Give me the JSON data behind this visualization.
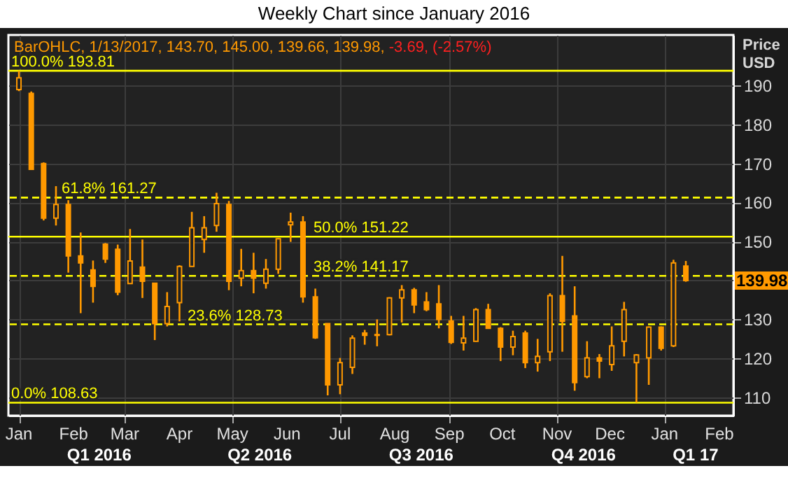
{
  "chart_data": {
    "type": "candlestick",
    "title": "Weekly Chart since January 2016",
    "ylabel": "Price USD",
    "x": [
      "2016-01-01",
      "2016-01-08",
      "2016-01-15",
      "2016-01-22",
      "2016-01-29",
      "2016-02-05",
      "2016-02-12",
      "2016-02-19",
      "2016-02-26",
      "2016-03-04",
      "2016-03-11",
      "2016-03-18",
      "2016-03-25",
      "2016-04-01",
      "2016-04-08",
      "2016-04-15",
      "2016-04-22",
      "2016-04-29",
      "2016-05-06",
      "2016-05-13",
      "2016-05-20",
      "2016-05-27",
      "2016-06-03",
      "2016-06-10",
      "2016-06-17",
      "2016-06-24",
      "2016-07-01",
      "2016-07-08",
      "2016-07-15",
      "2016-07-22",
      "2016-07-29",
      "2016-08-05",
      "2016-08-12",
      "2016-08-19",
      "2016-08-26",
      "2016-09-02",
      "2016-09-09",
      "2016-09-16",
      "2016-09-23",
      "2016-09-30",
      "2016-10-07",
      "2016-10-14",
      "2016-10-21",
      "2016-10-28",
      "2016-11-04",
      "2016-11-11",
      "2016-11-18",
      "2016-11-25",
      "2016-12-02",
      "2016-12-09",
      "2016-12-16",
      "2016-12-23",
      "2016-12-30",
      "2017-01-06",
      "2017-01-13"
    ],
    "color": "#ff9900",
    "ohlc": [
      [
        189,
        193.81,
        188.6,
        192
      ],
      [
        188,
        188.5,
        168.5,
        168.5
      ],
      [
        170,
        170.3,
        155.4,
        156
      ],
      [
        156,
        164.2,
        154.1,
        159.5
      ],
      [
        159.5,
        160.6,
        142,
        146.3
      ],
      [
        146.3,
        152.3,
        131.6,
        144.5
      ],
      [
        142.7,
        145.1,
        134.3,
        138.5
      ],
      [
        149.3,
        149.6,
        144.5,
        145.5
      ],
      [
        148,
        149.2,
        136.2,
        137
      ],
      [
        139.2,
        153.2,
        139.2,
        145
      ],
      [
        143.4,
        150.5,
        135.5,
        139.8
      ],
      [
        139.3,
        139.3,
        124.7,
        128.9
      ],
      [
        128.9,
        137,
        128.2,
        133.3
      ],
      [
        134.3,
        143.9,
        129.5,
        143.6
      ],
      [
        143.6,
        157.6,
        143.6,
        153.5
      ],
      [
        150.5,
        156.5,
        147.1,
        153.5
      ],
      [
        154.1,
        162.5,
        152.5,
        159.7
      ],
      [
        159.5,
        160.4,
        137.5,
        139.8
      ],
      [
        140.6,
        148.1,
        138.5,
        142.5
      ],
      [
        142.5,
        147.1,
        136.7,
        140.6
      ],
      [
        139.3,
        145.5,
        137.9,
        142.9
      ],
      [
        142.9,
        150.8,
        141.7,
        150.7
      ],
      [
        154.3,
        157.4,
        149.9,
        155
      ],
      [
        155,
        156.5,
        134.3,
        135.8
      ],
      [
        135.8,
        137.9,
        125,
        125.3
      ],
      [
        128.9,
        128.9,
        110.5,
        113.2
      ],
      [
        113.2,
        120.1,
        110.8,
        118.9
      ],
      [
        117.7,
        125.9,
        116,
        125.2
      ],
      [
        126.5,
        127.3,
        123.5,
        125.9
      ],
      [
        125.9,
        130,
        123.1,
        126.1
      ],
      [
        126.1,
        135.7,
        125.9,
        135.5
      ],
      [
        135.5,
        138.8,
        129.2,
        137.6
      ],
      [
        137.6,
        138.1,
        131.6,
        133.7
      ],
      [
        134.5,
        137,
        132.1,
        132.5
      ],
      [
        134,
        138.8,
        127.7,
        130
      ],
      [
        129.6,
        130.9,
        123.7,
        124.1
      ],
      [
        124,
        130.9,
        122,
        125.2
      ],
      [
        124.4,
        132.9,
        124.3,
        132.5
      ],
      [
        132.5,
        134,
        127.7,
        127.7
      ],
      [
        127.7,
        128,
        119.3,
        122.9
      ],
      [
        122.9,
        127.1,
        120.8,
        125.6
      ],
      [
        126.5,
        127.1,
        117.5,
        118.9
      ],
      [
        118.9,
        125,
        116.6,
        120.5
      ],
      [
        121.7,
        136.7,
        119.3,
        136.1
      ],
      [
        136.1,
        146.3,
        121.7,
        129.5
      ],
      [
        130.9,
        138.5,
        111.7,
        113.8
      ],
      [
        115.3,
        124.4,
        114.9,
        120.1
      ],
      [
        120.1,
        121.1,
        114.9,
        119.3
      ],
      [
        118.4,
        128.2,
        116.8,
        123.2
      ],
      [
        124.4,
        134.5,
        120.5,
        132.5
      ],
      [
        118.9,
        121.1,
        108.63,
        120.9
      ],
      [
        120.1,
        128.2,
        113.2,
        128
      ],
      [
        128,
        128.2,
        122,
        122.6
      ],
      [
        123.2,
        145.3,
        122.9,
        144.5
      ],
      [
        143.7,
        145,
        139.66,
        139.98
      ]
    ],
    "xlim": [
      "2015-12-30",
      "2017-02-05"
    ],
    "xticks": [
      {
        "value": "2016-01-01",
        "label": "Jan"
      },
      {
        "value": "2016-02-01",
        "label": "Feb"
      },
      {
        "value": "2016-03-01",
        "label": "Mar"
      },
      {
        "value": "2016-04-01",
        "label": "Apr"
      },
      {
        "value": "2016-05-01",
        "label": "May"
      },
      {
        "value": "2016-06-01",
        "label": "Jun"
      },
      {
        "value": "2016-07-01",
        "label": "Jul"
      },
      {
        "value": "2016-08-01",
        "label": "Aug"
      },
      {
        "value": "2016-09-01",
        "label": "Sep"
      },
      {
        "value": "2016-10-01",
        "label": "Oct"
      },
      {
        "value": "2016-11-01",
        "label": "Nov"
      },
      {
        "value": "2016-12-01",
        "label": "Dec"
      },
      {
        "value": "2017-01-01",
        "label": "Jan"
      },
      {
        "value": "2017-02-01",
        "label": "Feb"
      }
    ],
    "ylim": [
      105.3,
      203
    ],
    "yticks": [
      110,
      120,
      130,
      {
        "value": 140,
        "label": null
      },
      150,
      160,
      170,
      180,
      190
    ],
    "grid": true,
    "ref_lines": [
      {
        "axis": "y",
        "value": 193.81,
        "label": "100.0% 193.81",
        "color": "#ffff00",
        "line_style": "solid"
      },
      {
        "axis": "y",
        "value": 161.27,
        "label": "61.8% 161.27",
        "color": "#ffff00",
        "line_style": "dashed"
      },
      {
        "axis": "y",
        "value": 151.22,
        "label": "50.0% 151.22",
        "color": "#ffff00",
        "line_style": "solid"
      },
      {
        "axis": "y",
        "value": 141.17,
        "label": "38.2% 141.17",
        "color": "#ffff00",
        "line_style": "dashed"
      },
      {
        "axis": "y",
        "value": 128.73,
        "label": "23.6% 128.73",
        "color": "#ffff00",
        "line_style": "dashed"
      },
      {
        "axis": "y",
        "value": 108.63,
        "label": "0.0% 108.63",
        "color": "#ffff00",
        "line_style": "solid"
      }
    ],
    "annotations": [
      "BarOHLC, 1/13/2017, 143.70, 145.00, 139.66, 139.98,",
      "-3.69, (-2.57%)",
      "139.98",
      "Q1 2016",
      "Q2 2016",
      "Q3 2016",
      "Q4 2016",
      "Q1 17"
    ]
  }
}
